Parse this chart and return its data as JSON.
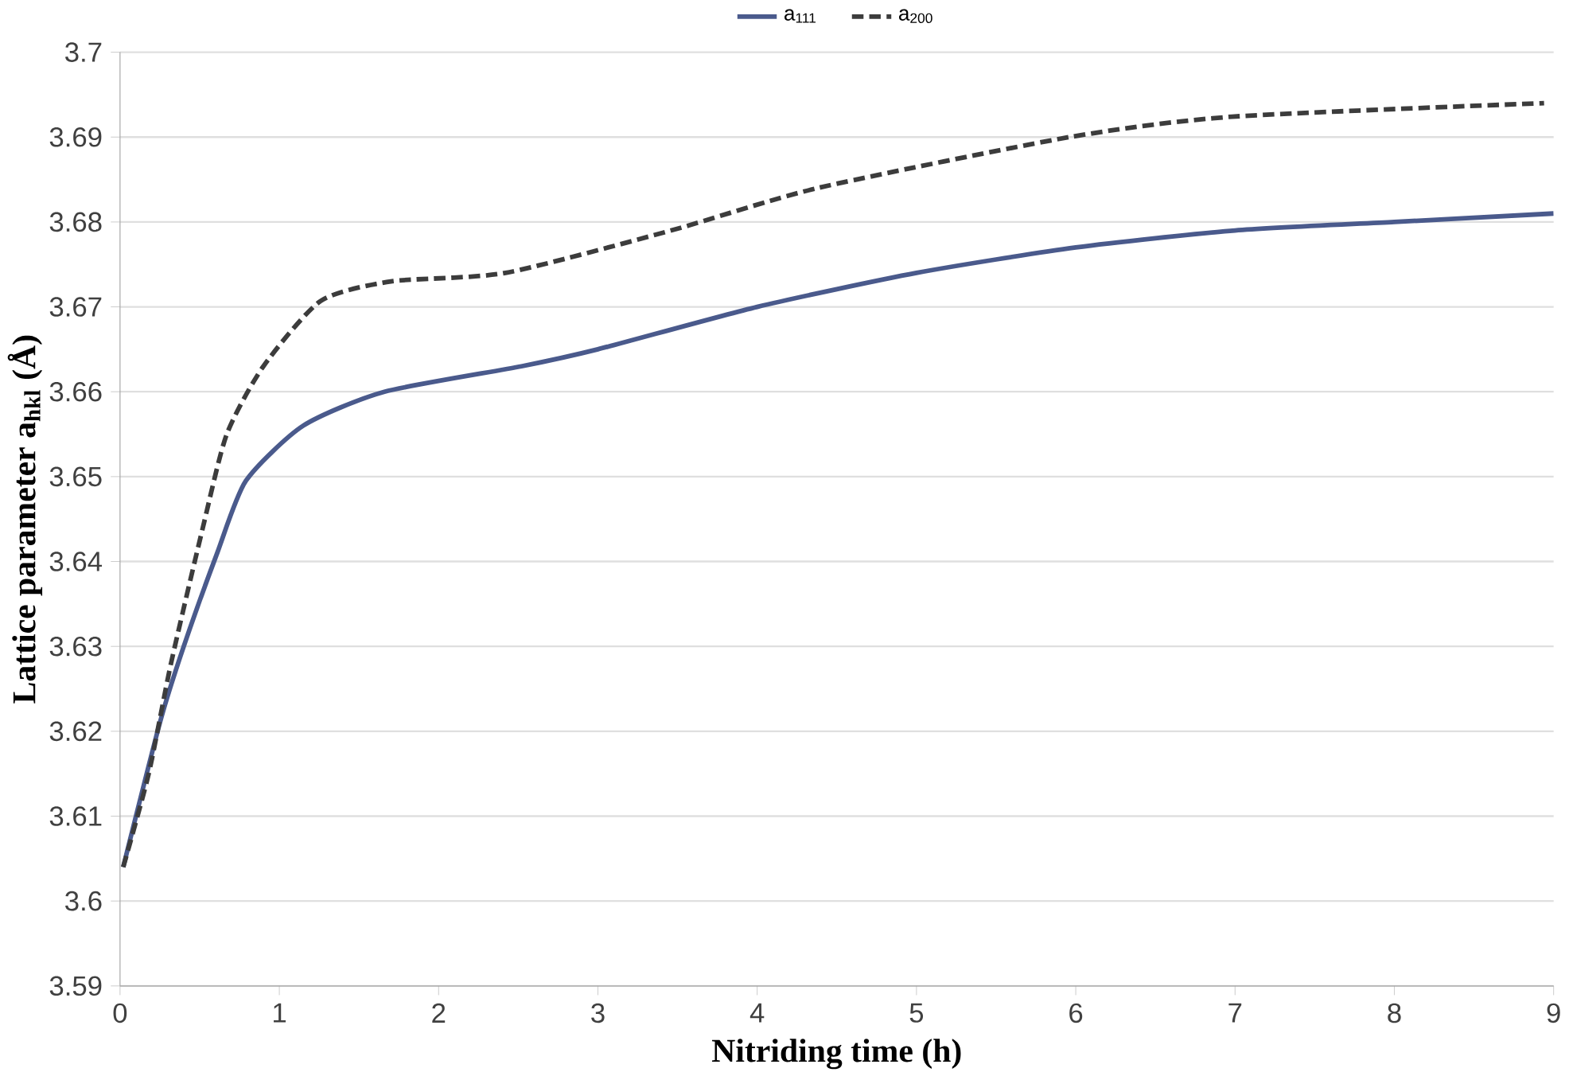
{
  "chart_data": {
    "type": "line",
    "xlabel": "Nitriding time (h)",
    "ylabel": "Lattice parameter a$_{hkl}$ (Å)",
    "xlim": [
      0,
      9
    ],
    "xticks": [
      0,
      1,
      2,
      3,
      4,
      5,
      6,
      7,
      8,
      9
    ],
    "ylim": [
      3.59,
      3.7
    ],
    "yticks": [
      3.59,
      3.6,
      3.61,
      3.62,
      3.63,
      3.64,
      3.65,
      3.66,
      3.67,
      3.68,
      3.69,
      3.7
    ],
    "grid": "y",
    "legend": "top",
    "marker": "none",
    "series": [
      {
        "name": "a$_{111}$",
        "color": "#4a5a8c",
        "line_style": "solid",
        "x": [
          0.02,
          0.25,
          0.4,
          0.61,
          0.79,
          1.15,
          1.66,
          2.52,
          3.0,
          4.0,
          5.0,
          6.0,
          7.0,
          8.0,
          9.0
        ],
        "values": [
          3.604,
          3.621,
          3.63,
          3.641,
          3.6495,
          3.656,
          3.66,
          3.663,
          3.665,
          3.67,
          3.674,
          3.677,
          3.679,
          3.68,
          3.681
        ]
      },
      {
        "name": "a$_{200}$",
        "color": "#3c3c3c",
        "line_style": "dashed",
        "x": [
          0.02,
          0.18,
          0.32,
          0.52,
          0.67,
          0.9,
          1.26,
          1.7,
          2.42,
          3.46,
          4.38,
          5.96,
          6.98,
          8.94
        ],
        "values": [
          3.604,
          3.615,
          3.628,
          3.644,
          3.655,
          3.663,
          3.6707,
          3.673,
          3.674,
          3.679,
          3.684,
          3.69,
          3.6924,
          3.694
        ]
      }
    ]
  }
}
